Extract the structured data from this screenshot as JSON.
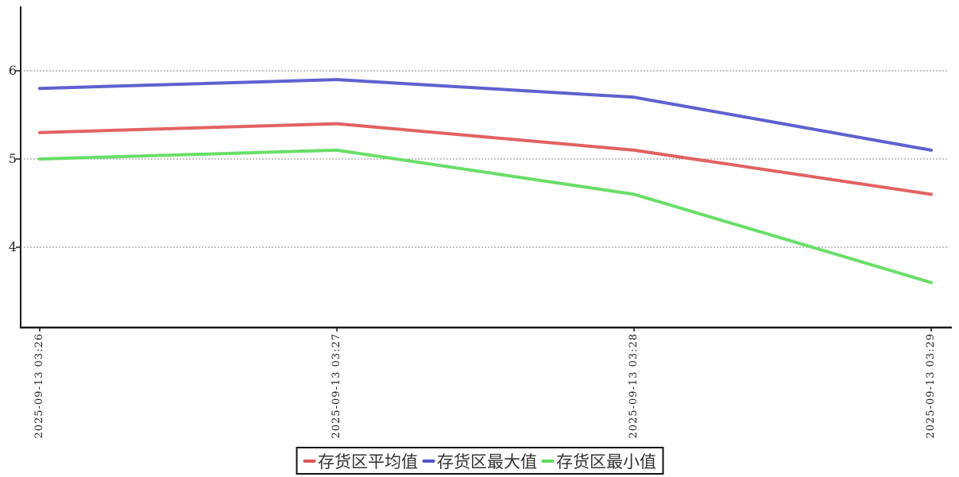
{
  "chart_data": {
    "type": "line",
    "title": "",
    "x_labels": [
      "2025-09-13 03:26",
      "2025-09-13 03:27",
      "2025-09-13 03:28",
      "2025-09-13 03:29"
    ],
    "y_ticks": [
      4,
      5,
      6
    ],
    "ylim": [
      3.1,
      6.75
    ],
    "grid": "horizontal-dotted",
    "legend_position": "bottom-center",
    "series": [
      {
        "name": "存货区平均值",
        "color": "#E05555",
        "values": [
          5.3,
          5.4,
          5.1,
          4.6
        ]
      },
      {
        "name": "存货区最大值",
        "color": "#5353CC",
        "values": [
          5.8,
          5.9,
          5.7,
          5.1
        ]
      },
      {
        "name": "存货区最小值",
        "color": "#5CDB5C",
        "values": [
          5.0,
          5.1,
          4.6,
          3.6
        ]
      }
    ]
  },
  "colors": {
    "axis": "#1a1a1a",
    "grid": "#8a8a8a",
    "text": "#333333",
    "legend_border": "#111111"
  }
}
